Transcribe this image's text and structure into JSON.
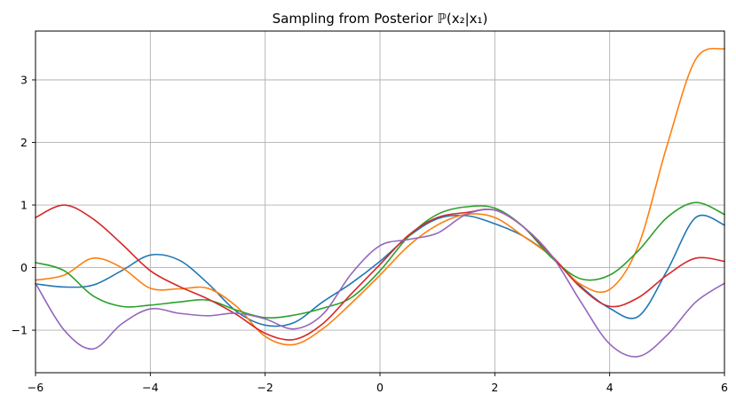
{
  "chart_data": {
    "type": "line",
    "title": "Sampling from Posterior ℙ(x₂|x₁)",
    "xlabel": "",
    "ylabel": "",
    "xlim": [
      -6,
      6
    ],
    "ylim": [
      -1.68,
      3.78
    ],
    "x_ticks": [
      -6,
      -4,
      -2,
      0,
      2,
      4,
      6
    ],
    "y_ticks": [
      -1,
      0,
      1,
      2,
      3
    ],
    "x_tick_labels": [
      "−6",
      "−4",
      "−2",
      "0",
      "2",
      "4",
      "6"
    ],
    "y_tick_labels": [
      "−1",
      "0",
      "1",
      "2",
      "3"
    ],
    "grid": true,
    "x": [
      -6,
      -5.5,
      -5,
      -4.5,
      -4,
      -3.5,
      -3,
      -2.5,
      -2,
      -1.5,
      -1,
      -0.5,
      0,
      0.5,
      1,
      1.5,
      2,
      2.5,
      3,
      3.5,
      4,
      4.5,
      5,
      5.5,
      6
    ],
    "series": [
      {
        "color": "#1f77b4",
        "values": [
          -0.26,
          -0.31,
          -0.28,
          -0.05,
          0.2,
          0.12,
          -0.25,
          -0.7,
          -0.92,
          -0.88,
          -0.55,
          -0.25,
          0.1,
          0.5,
          0.78,
          0.83,
          0.7,
          0.5,
          0.17,
          -0.3,
          -0.65,
          -0.78,
          -0.05,
          0.8,
          0.68
        ]
      },
      {
        "color": "#ff7f0e",
        "values": [
          -0.2,
          -0.12,
          0.15,
          0.0,
          -0.33,
          -0.34,
          -0.33,
          -0.62,
          -1.1,
          -1.23,
          -0.98,
          -0.57,
          -0.12,
          0.35,
          0.68,
          0.85,
          0.8,
          0.5,
          0.17,
          -0.27,
          -0.35,
          0.35,
          1.95,
          3.33,
          3.5
        ]
      },
      {
        "color": "#2ca02c",
        "values": [
          0.08,
          -0.05,
          -0.45,
          -0.62,
          -0.6,
          -0.55,
          -0.52,
          -0.68,
          -0.8,
          -0.76,
          -0.65,
          -0.48,
          -0.05,
          0.5,
          0.85,
          0.97,
          0.95,
          0.65,
          0.15,
          -0.18,
          -0.12,
          0.27,
          0.8,
          1.04,
          0.85
        ]
      },
      {
        "color": "#d62728",
        "values": [
          0.8,
          1.0,
          0.78,
          0.38,
          -0.05,
          -0.3,
          -0.5,
          -0.75,
          -1.05,
          -1.15,
          -0.9,
          -0.42,
          0.05,
          0.52,
          0.8,
          0.88,
          0.92,
          0.65,
          0.18,
          -0.32,
          -0.62,
          -0.48,
          -0.12,
          0.15,
          0.1
        ]
      },
      {
        "color": "#9467bd",
        "values": [
          -0.25,
          -1.0,
          -1.3,
          -0.9,
          -0.66,
          -0.73,
          -0.77,
          -0.73,
          -0.82,
          -0.98,
          -0.75,
          -0.1,
          0.35,
          0.45,
          0.55,
          0.85,
          0.92,
          0.65,
          0.18,
          -0.55,
          -1.22,
          -1.42,
          -1.08,
          -0.55,
          -0.25
        ]
      }
    ]
  }
}
